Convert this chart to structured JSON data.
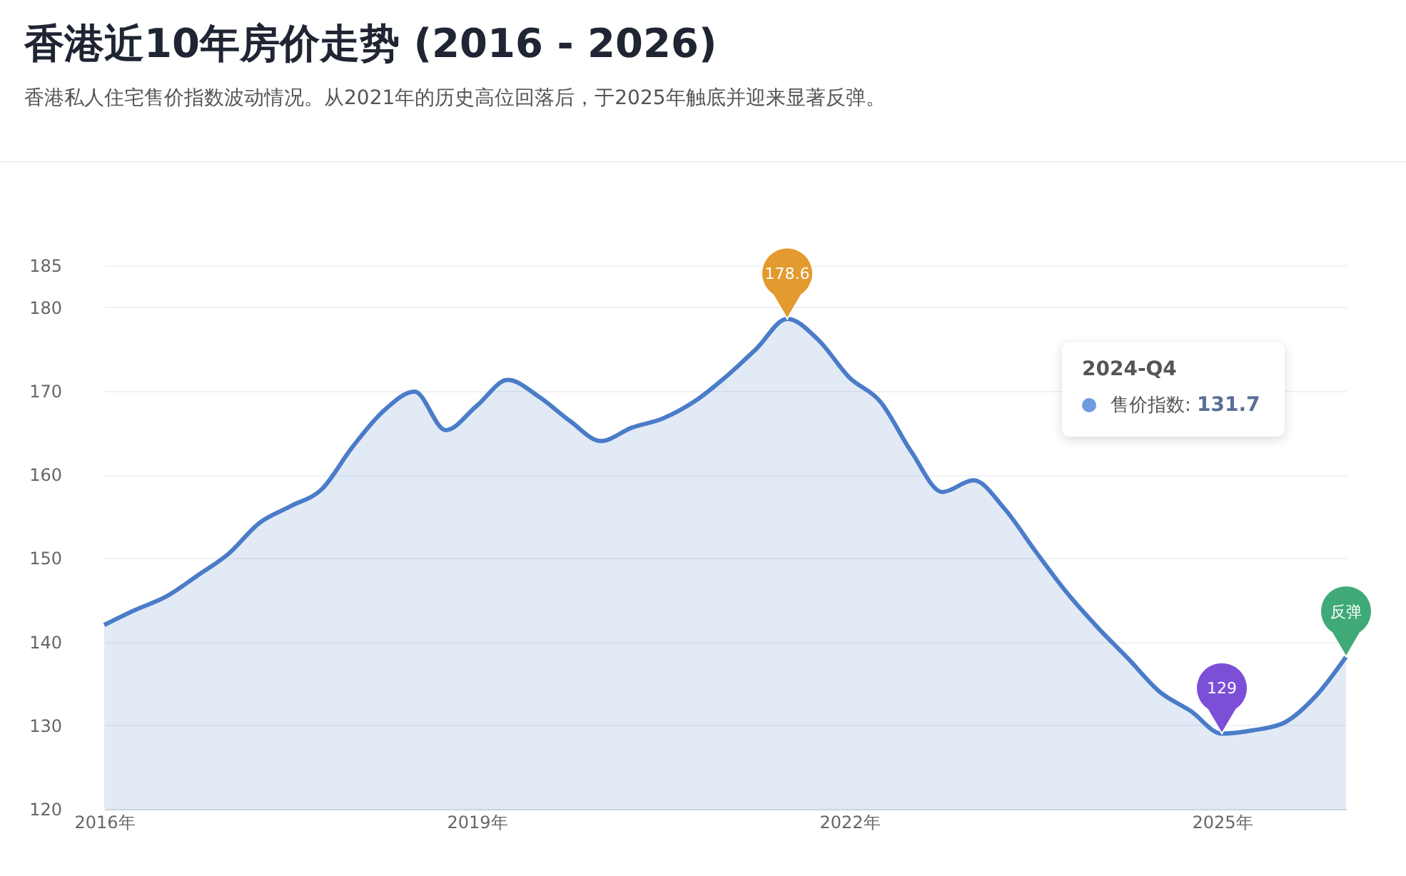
{
  "chart_data": {
    "type": "area",
    "title": "香港近10年房价走势 (2016 - 2026)",
    "subtitle": "香港私人住宅售价指数波动情况。从2021年的历史高位回落后，于2025年触底并迎来显著反弹。",
    "x": [
      2016,
      2016.25,
      2016.5,
      2016.75,
      2017,
      2017.25,
      2017.5,
      2017.75,
      2018,
      2018.25,
      2018.5,
      2018.75,
      2019,
      2019.25,
      2019.5,
      2019.75,
      2020,
      2020.25,
      2020.5,
      2020.75,
      2021,
      2021.25,
      2021.5,
      2021.75,
      2022,
      2022.25,
      2022.5,
      2022.75,
      2023,
      2023.25,
      2023.5,
      2023.75,
      2024,
      2024.25,
      2024.5,
      2024.75,
      2025,
      2025.25,
      2025.5,
      2025.75,
      2026
    ],
    "series": [
      {
        "color": "#4a7cc8",
        "values": [
          142.0,
          143.8,
          145.4,
          147.9,
          150.5,
          154.2,
          156.2,
          158.2,
          163.3,
          167.6,
          169.9,
          165.3,
          168.2,
          171.3,
          169.3,
          166.4,
          164.0,
          165.6,
          166.7,
          168.7,
          171.6,
          175.0,
          178.6,
          176.1,
          171.6,
          168.7,
          162.7,
          157.9,
          159.3,
          155.9,
          150.8,
          145.9,
          141.7,
          137.9,
          134.0,
          131.7,
          129,
          129.4,
          130.3,
          133.4,
          138.2
        ]
      }
    ],
    "xlim": [
      2016,
      2026
    ],
    "xticks": [
      {
        "value": 2016,
        "label": "2016年"
      },
      {
        "value": 2019,
        "label": "2019年"
      },
      {
        "value": 2022,
        "label": "2022年"
      },
      {
        "value": 2025,
        "label": "2025年"
      }
    ],
    "ylim": [
      120,
      185
    ],
    "yticks": [
      120,
      130,
      140,
      150,
      160,
      170,
      180,
      185
    ],
    "grid": "y",
    "annotations": [
      {
        "text": "178.6",
        "x": 2021.5,
        "y": 178.6
      },
      {
        "text": "129",
        "x": 2025,
        "y": 129
      },
      {
        "text": "反弹",
        "x": 2026,
        "y": 138.2
      },
      "2024-Q4",
      "售价指数: 131.7"
    ]
  }
}
